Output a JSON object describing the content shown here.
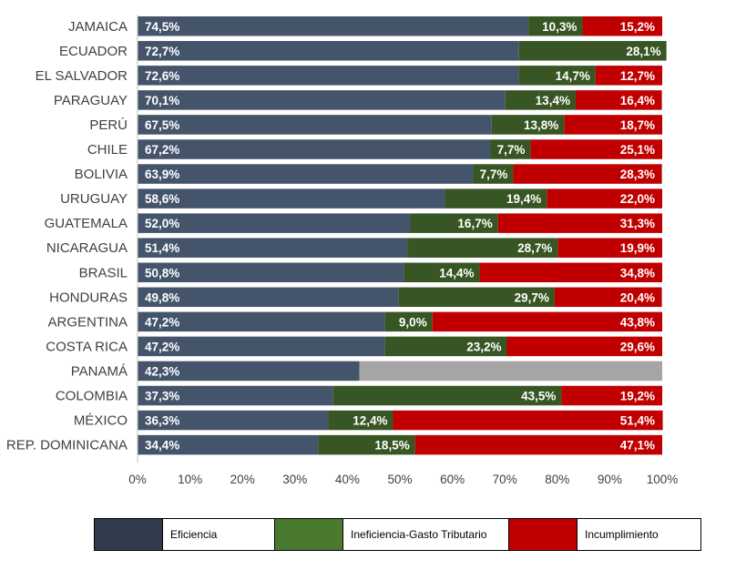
{
  "chart_data": {
    "type": "bar",
    "orientation": "horizontal",
    "stacked": true,
    "categories": [
      "JAMAICA",
      "ECUADOR",
      "EL SALVADOR",
      "PARAGUAY",
      "PERÚ",
      "CHILE",
      "BOLIVIA",
      "URUGUAY",
      "GUATEMALA",
      "NICARAGUA",
      "BRASIL",
      "HONDURAS",
      "ARGENTINA",
      "COSTA RICA",
      "PANAMÁ",
      "COLOMBIA",
      "MÉXICO",
      "REP. DOMINICANA"
    ],
    "series": [
      {
        "name": "Eficiencia",
        "color": "#44546A",
        "values": [
          74.5,
          72.7,
          72.6,
          70.1,
          67.5,
          67.2,
          63.9,
          58.6,
          52.0,
          51.4,
          50.8,
          49.8,
          47.2,
          47.2,
          42.3,
          37.3,
          36.3,
          34.4
        ],
        "labels": [
          "74,5%",
          "72,7%",
          "72,6%",
          "70,1%",
          "67,5%",
          "67,2%",
          "63,9%",
          "58,6%",
          "52,0%",
          "51,4%",
          "50,8%",
          "49,8%",
          "47,2%",
          "47,2%",
          "42,3%",
          "37,3%",
          "36,3%",
          "34,4%"
        ]
      },
      {
        "name": "Ineficiencia-Gasto Tributario",
        "color": "#375623",
        "values": [
          10.3,
          28.1,
          14.7,
          13.4,
          13.8,
          7.7,
          7.7,
          19.4,
          16.7,
          28.7,
          14.4,
          29.7,
          9.0,
          23.2,
          null,
          43.5,
          12.4,
          18.5
        ],
        "labels": [
          "10,3%",
          "28,1%",
          "14,7%",
          "13,4%",
          "13,8%",
          "7,7%",
          "7,7%",
          "19,4%",
          "16,7%",
          "28,7%",
          "14,4%",
          "29,7%",
          "9,0%",
          "23,2%",
          "",
          "43,5%",
          "12,4%",
          "18,5%"
        ]
      },
      {
        "name": "Incumplimiento",
        "color": "#C00000",
        "values": [
          15.2,
          0,
          12.7,
          16.4,
          18.7,
          25.1,
          28.3,
          22.0,
          31.3,
          19.9,
          34.8,
          20.4,
          43.8,
          29.6,
          null,
          19.2,
          51.4,
          47.1
        ],
        "labels": [
          "15,2%",
          "",
          "12,7%",
          "16,4%",
          "18,7%",
          "25,1%",
          "28,3%",
          "22,0%",
          "31,3%",
          "19,9%",
          "34,8%",
          "20,4%",
          "43,8%",
          "29,6%",
          "",
          "19,2%",
          "51,4%",
          "47,1%"
        ]
      }
    ],
    "remainder_color": "#A5A5A5",
    "xticks": [
      "0%",
      "10%",
      "20%",
      "30%",
      "40%",
      "50%",
      "60%",
      "70%",
      "80%",
      "90%",
      "100%"
    ],
    "xlim": [
      0,
      100
    ],
    "grid": false,
    "legend_position": "bottom"
  },
  "legend": {
    "items": [
      {
        "label": "Eficiencia",
        "color": "#323B4C"
      },
      {
        "label": "Ineficiencia-Gasto Tributario",
        "color": "#4A7A30"
      },
      {
        "label": "Incumplimiento",
        "color": "#C00000"
      }
    ]
  }
}
